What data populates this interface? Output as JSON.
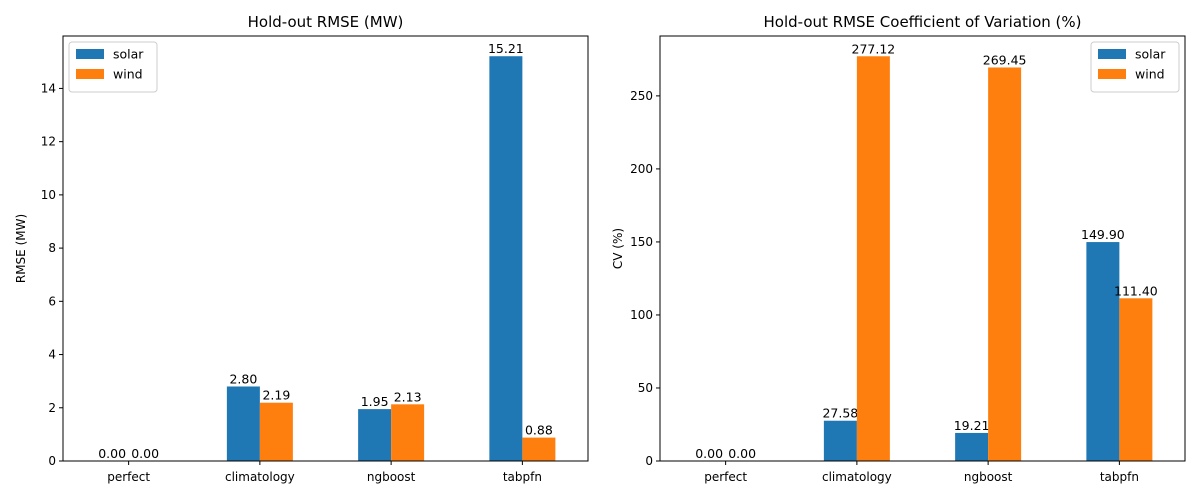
{
  "chart_data": [
    {
      "type": "bar",
      "title": "Hold-out RMSE (MW)",
      "xlabel": "",
      "ylabel": "RMSE (MW)",
      "categories": [
        "perfect",
        "climatology",
        "ngboost",
        "tabpfn"
      ],
      "series": [
        {
          "name": "solar",
          "color": "#1f77b4",
          "values": [
            0.0,
            2.8,
            1.95,
            15.21
          ],
          "labels": [
            "0.00",
            "2.80",
            "1.95",
            "15.21"
          ]
        },
        {
          "name": "wind",
          "color": "#ff7f0e",
          "values": [
            0.0,
            2.19,
            2.13,
            0.88
          ],
          "labels": [
            "0.00",
            "2.19",
            "2.13",
            "0.88"
          ]
        }
      ],
      "ylim": [
        0,
        15.97
      ],
      "yticks": [
        0,
        2,
        4,
        6,
        8,
        10,
        12,
        14
      ],
      "ytick_labels": [
        "0",
        "2",
        "4",
        "6",
        "8",
        "10",
        "12",
        "14"
      ],
      "legend": "top-left",
      "grid": false
    },
    {
      "type": "bar",
      "title": "Hold-out RMSE Coefficient of Variation (%)",
      "xlabel": "",
      "ylabel": "CV (%)",
      "categories": [
        "perfect",
        "climatology",
        "ngboost",
        "tabpfn"
      ],
      "series": [
        {
          "name": "solar",
          "color": "#1f77b4",
          "values": [
            0.0,
            27.58,
            19.21,
            149.9
          ],
          "labels": [
            "0.00",
            "27.58",
            "19.21",
            "149.90"
          ]
        },
        {
          "name": "wind",
          "color": "#ff7f0e",
          "values": [
            0.0,
            277.12,
            269.45,
            111.4
          ],
          "labels": [
            "0.00",
            "277.12",
            "269.45",
            "111.40"
          ]
        }
      ],
      "ylim": [
        0,
        291
      ],
      "yticks": [
        0,
        50,
        100,
        150,
        200,
        250
      ],
      "ytick_labels": [
        "0",
        "50",
        "100",
        "150",
        "200",
        "250"
      ],
      "legend": "top-right",
      "grid": false
    }
  ]
}
